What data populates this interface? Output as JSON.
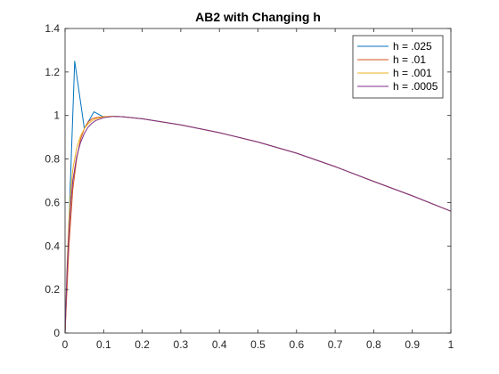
{
  "chart_data": {
    "type": "line",
    "title": "AB2 with Changing h",
    "xlabel": "",
    "ylabel": "",
    "xlim": [
      0,
      1
    ],
    "ylim": [
      0,
      1.4
    ],
    "xticks": [
      "0",
      "0.1",
      "0.2",
      "0.3",
      "0.4",
      "0.5",
      "0.6",
      "0.7",
      "0.8",
      "0.9",
      "1"
    ],
    "yticks": [
      "0",
      "0.2",
      "0.4",
      "0.6",
      "0.8",
      "1",
      "1.2",
      "1.4"
    ],
    "grid": false,
    "legend_position": "top-right",
    "series": [
      {
        "name": "h = .025",
        "color": "#0072BD",
        "points": [
          [
            0,
            0
          ],
          [
            0.025,
            1.25
          ],
          [
            0.05,
            0.94
          ],
          [
            0.075,
            1.017
          ],
          [
            0.1,
            0.993
          ],
          [
            0.125,
            0.997
          ],
          [
            0.15,
            0.994
          ],
          [
            0.2,
            0.985
          ],
          [
            0.3,
            0.957
          ],
          [
            0.4,
            0.921
          ],
          [
            0.5,
            0.878
          ],
          [
            0.6,
            0.827
          ],
          [
            0.7,
            0.765
          ],
          [
            0.8,
            0.697
          ],
          [
            0.9,
            0.631
          ],
          [
            1.0,
            0.56
          ]
        ]
      },
      {
        "name": "h = .01",
        "color": "#D95319",
        "points": [
          [
            0,
            0
          ],
          [
            0.01,
            0.4
          ],
          [
            0.02,
            0.66
          ],
          [
            0.03,
            0.8
          ],
          [
            0.04,
            0.89
          ],
          [
            0.05,
            0.94
          ],
          [
            0.06,
            0.97
          ],
          [
            0.07,
            0.985
          ],
          [
            0.08,
            0.99
          ],
          [
            0.1,
            0.995
          ],
          [
            0.125,
            0.997
          ],
          [
            0.15,
            0.994
          ],
          [
            0.2,
            0.985
          ],
          [
            0.3,
            0.957
          ],
          [
            0.4,
            0.921
          ],
          [
            0.5,
            0.878
          ],
          [
            0.6,
            0.827
          ],
          [
            0.7,
            0.765
          ],
          [
            0.8,
            0.697
          ],
          [
            0.9,
            0.631
          ],
          [
            1.0,
            0.56
          ]
        ]
      },
      {
        "name": "h = .001",
        "color": "#EDB120",
        "points": [
          [
            0,
            0
          ],
          [
            0.005,
            0.3
          ],
          [
            0.01,
            0.52
          ],
          [
            0.015,
            0.66
          ],
          [
            0.02,
            0.75
          ],
          [
            0.03,
            0.85
          ],
          [
            0.04,
            0.905
          ],
          [
            0.05,
            0.94
          ],
          [
            0.06,
            0.962
          ],
          [
            0.07,
            0.976
          ],
          [
            0.08,
            0.985
          ],
          [
            0.1,
            0.993
          ],
          [
            0.125,
            0.997
          ],
          [
            0.15,
            0.994
          ],
          [
            0.2,
            0.985
          ],
          [
            0.3,
            0.957
          ],
          [
            0.4,
            0.921
          ],
          [
            0.5,
            0.878
          ],
          [
            0.6,
            0.827
          ],
          [
            0.7,
            0.765
          ],
          [
            0.8,
            0.697
          ],
          [
            0.9,
            0.631
          ],
          [
            1.0,
            0.56
          ]
        ]
      },
      {
        "name": "h = .0005",
        "color": "#7E2F8E",
        "points": [
          [
            0,
            0
          ],
          [
            0.005,
            0.28
          ],
          [
            0.01,
            0.46
          ],
          [
            0.015,
            0.6
          ],
          [
            0.02,
            0.7
          ],
          [
            0.03,
            0.81
          ],
          [
            0.04,
            0.875
          ],
          [
            0.05,
            0.918
          ],
          [
            0.06,
            0.947
          ],
          [
            0.07,
            0.965
          ],
          [
            0.08,
            0.977
          ],
          [
            0.1,
            0.99
          ],
          [
            0.125,
            0.996
          ],
          [
            0.15,
            0.994
          ],
          [
            0.2,
            0.985
          ],
          [
            0.3,
            0.957
          ],
          [
            0.4,
            0.921
          ],
          [
            0.5,
            0.878
          ],
          [
            0.6,
            0.827
          ],
          [
            0.7,
            0.765
          ],
          [
            0.8,
            0.697
          ],
          [
            0.9,
            0.631
          ],
          [
            1.0,
            0.56
          ]
        ]
      }
    ]
  }
}
